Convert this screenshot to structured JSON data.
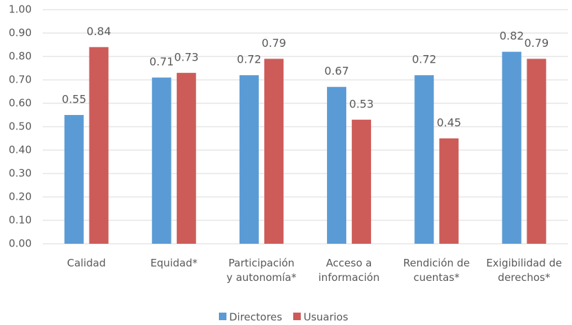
{
  "chart_data": {
    "type": "bar",
    "categories": [
      "Calidad",
      "Equidad*",
      "Participación\ny autonomía*",
      "Acceso a\ninformación",
      "Rendición de\ncuentas*",
      "Exigibilidad de\nderechos*"
    ],
    "series": [
      {
        "name": "Directores",
        "color": "#5b9bd5",
        "values": [
          0.55,
          0.71,
          0.72,
          0.67,
          0.72,
          0.82
        ]
      },
      {
        "name": "Usuarios",
        "color": "#cd5c59",
        "values": [
          0.84,
          0.73,
          0.79,
          0.53,
          0.45,
          0.79
        ]
      }
    ],
    "ylim": [
      0,
      1
    ],
    "yticks": [
      {
        "value": 0,
        "label": "0.00"
      },
      {
        "value": 0.1,
        "label": "0.10"
      },
      {
        "value": 0.2,
        "label": "0.20"
      },
      {
        "value": 0.3,
        "label": "0.30"
      },
      {
        "value": 0.4,
        "label": "0.40"
      },
      {
        "value": 0.5,
        "label": "0.50"
      },
      {
        "value": 0.6,
        "label": "0.60"
      },
      {
        "value": 0.7,
        "label": "0.70"
      },
      {
        "value": 0.8,
        "label": "0.80"
      },
      {
        "value": 0.9,
        "label": "0.90"
      },
      {
        "value": 1,
        "label": "1.00"
      }
    ],
    "grid": true,
    "legend": "bottom"
  }
}
